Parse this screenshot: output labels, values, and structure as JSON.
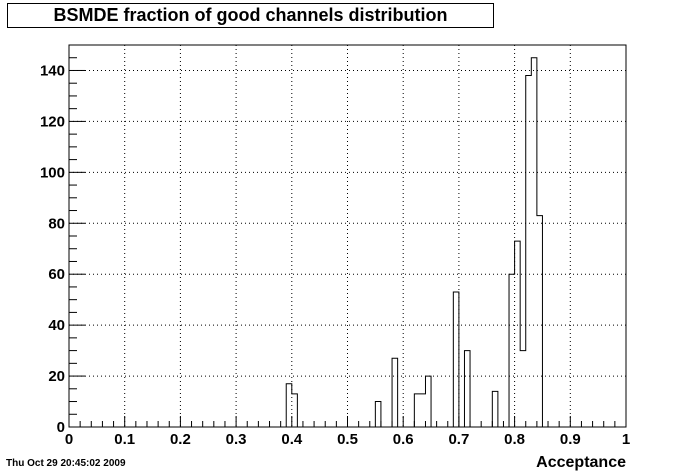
{
  "footer": {
    "date_stamp": "Thu Oct 29 20:45:02 2009"
  },
  "chart_data": {
    "type": "bar",
    "title": "BSMDE fraction of good channels distribution",
    "xlabel": "Acceptance",
    "ylabel": "",
    "xlim": [
      0,
      1
    ],
    "ylim": [
      0,
      150
    ],
    "grid": true,
    "bin_width": 0.01,
    "x_ticks": [
      "0",
      "0.1",
      "0.2",
      "0.3",
      "0.4",
      "0.5",
      "0.6",
      "0.7",
      "0.8",
      "0.9",
      "1"
    ],
    "y_ticks": [
      "0",
      "20",
      "40",
      "60",
      "80",
      "100",
      "120",
      "140"
    ],
    "bins": [
      {
        "x": 0.39,
        "value": 17
      },
      {
        "x": 0.4,
        "value": 13
      },
      {
        "x": 0.55,
        "value": 10
      },
      {
        "x": 0.58,
        "value": 27
      },
      {
        "x": 0.62,
        "value": 13
      },
      {
        "x": 0.63,
        "value": 13
      },
      {
        "x": 0.64,
        "value": 20
      },
      {
        "x": 0.69,
        "value": 53
      },
      {
        "x": 0.71,
        "value": 30
      },
      {
        "x": 0.76,
        "value": 14
      },
      {
        "x": 0.79,
        "value": 60
      },
      {
        "x": 0.8,
        "value": 73
      },
      {
        "x": 0.81,
        "value": 30
      },
      {
        "x": 0.82,
        "value": 138
      },
      {
        "x": 0.83,
        "value": 145
      },
      {
        "x": 0.84,
        "value": 83
      }
    ]
  }
}
